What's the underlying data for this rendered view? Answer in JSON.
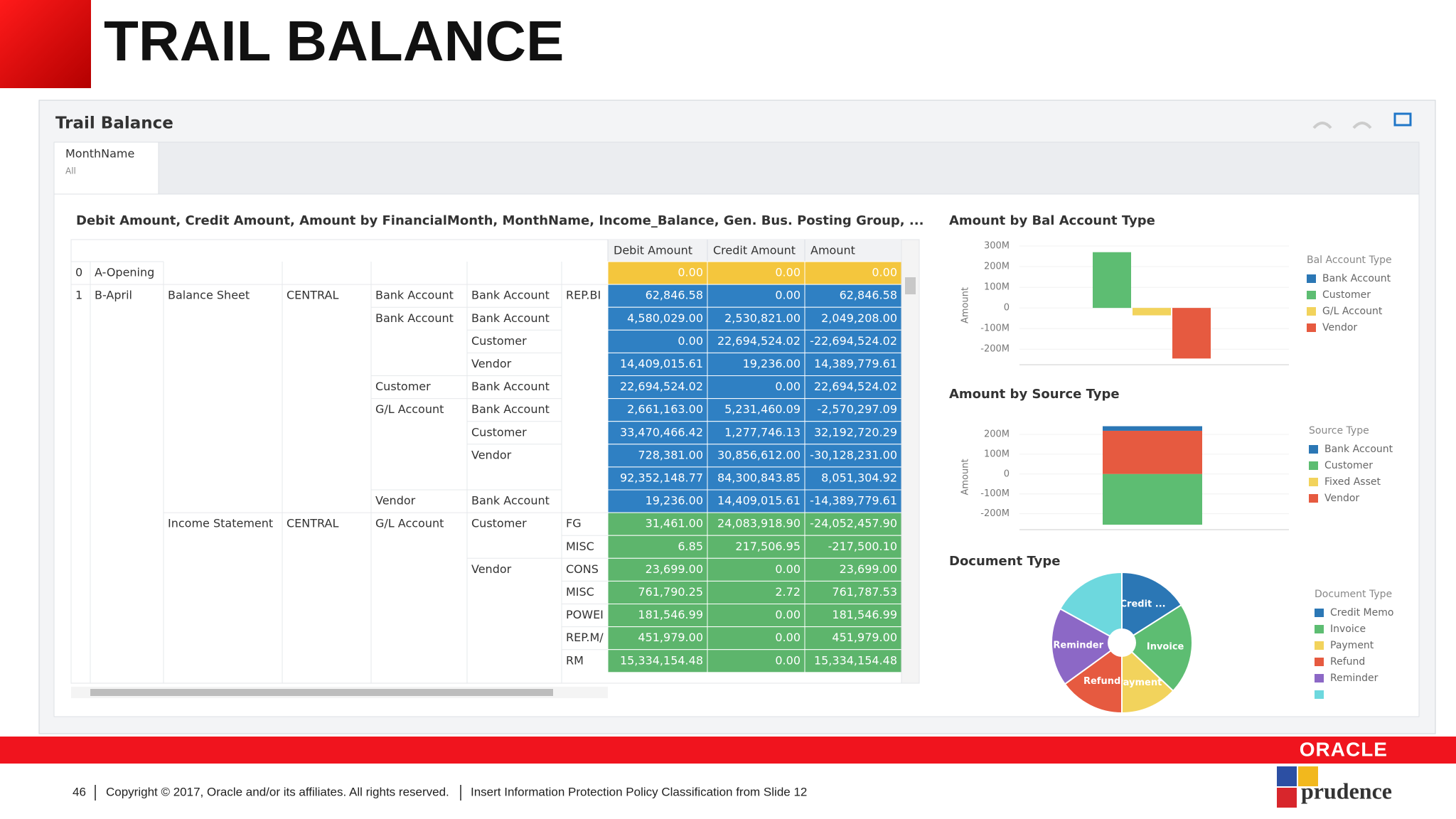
{
  "slide": {
    "title": "TRAIL BALANCE",
    "logo": "ORACLE",
    "brand": "prudence",
    "footer": {
      "page": "46",
      "copyright": "Copyright © 2017, Oracle and/or its affiliates. All rights reserved.",
      "classification": "Insert Information Protection Policy Classification from Slide 12"
    }
  },
  "dashboard": {
    "title": "Trail Balance",
    "filter": {
      "label": "MonthName",
      "value": "All"
    }
  },
  "table": {
    "title": "Debit Amount, Credit Amount, Amount by FinancialMonth, MonthName, Income_Balance, Gen. Bus. Posting Group, ...",
    "columns": [
      "Debit Amount",
      "Credit Amount",
      "Amount"
    ],
    "rows": [
      {
        "idx": "0",
        "month": "A-Opening",
        "color": "#f4c63d",
        "values": [
          "0.00",
          "0.00",
          "0.00"
        ]
      },
      {
        "idx": "1",
        "month": "B-April",
        "statement": "Balance Sheet",
        "group": "CENTRAL",
        "bal_type": "Bank Account",
        "source": "Bank Account",
        "code": "REP.BI",
        "color": "#2f80c3",
        "values": [
          "62,846.58",
          "0.00",
          "62,846.58"
        ]
      },
      {
        "bal_type": "Bank Account",
        "source": "Bank Account",
        "color": "#2f80c3",
        "values": [
          "4,580,029.00",
          "2,530,821.00",
          "2,049,208.00"
        ]
      },
      {
        "source": "Customer",
        "color": "#2f80c3",
        "values": [
          "0.00",
          "22,694,524.02",
          "-22,694,524.02"
        ]
      },
      {
        "source": "Vendor",
        "color": "#2f80c3",
        "values": [
          "14,409,015.61",
          "19,236.00",
          "14,389,779.61"
        ]
      },
      {
        "bal_type": "Customer",
        "source": "Bank Account",
        "color": "#2f80c3",
        "values": [
          "22,694,524.02",
          "0.00",
          "22,694,524.02"
        ]
      },
      {
        "bal_type": "G/L Account",
        "source": "Bank Account",
        "color": "#2f80c3",
        "values": [
          "2,661,163.00",
          "5,231,460.09",
          "-2,570,297.09"
        ]
      },
      {
        "source": "Customer",
        "color": "#2f80c3",
        "values": [
          "33,470,466.42",
          "1,277,746.13",
          "32,192,720.29"
        ]
      },
      {
        "source": "Vendor",
        "color": "#2f80c3",
        "values": [
          "728,381.00",
          "30,856,612.00",
          "-30,128,231.00"
        ]
      },
      {
        "color": "#2f80c3",
        "values": [
          "92,352,148.77",
          "84,300,843.85",
          "8,051,304.92"
        ]
      },
      {
        "bal_type": "Vendor",
        "source": "Bank Account",
        "color": "#2f80c3",
        "values": [
          "19,236.00",
          "14,409,015.61",
          "-14,389,779.61"
        ]
      },
      {
        "statement": "Income Statement",
        "group": "CENTRAL",
        "bal_type": "G/L Account",
        "source": "Customer",
        "code": "FG",
        "color": "#5db56c",
        "values": [
          "31,461.00",
          "24,083,918.90",
          "-24,052,457.90"
        ]
      },
      {
        "code": "MISC",
        "color": "#5db56c",
        "values": [
          "6.85",
          "217,506.95",
          "-217,500.10"
        ]
      },
      {
        "source": "Vendor",
        "code": "CONS",
        "color": "#5db56c",
        "values": [
          "23,699.00",
          "0.00",
          "23,699.00"
        ]
      },
      {
        "code": "MISC",
        "color": "#5db56c",
        "values": [
          "761,790.25",
          "2.72",
          "761,787.53"
        ]
      },
      {
        "code": "POWEI",
        "color": "#5db56c",
        "values": [
          "181,546.99",
          "0.00",
          "181,546.99"
        ]
      },
      {
        "code": "REP.M/",
        "color": "#5db56c",
        "values": [
          "451,979.00",
          "0.00",
          "451,979.00"
        ]
      },
      {
        "code": "RM",
        "color": "#5db56c",
        "values": [
          "15,334,154.48",
          "0.00",
          "15,334,154.48"
        ]
      }
    ]
  },
  "charts": [
    {
      "type": "bar",
      "title": "Amount by Bal Account Type",
      "ylabel": "Amount",
      "legend_title": "Bal Account Type",
      "ylim": [
        -275000000,
        300000000
      ],
      "yticks": [
        {
          "value": 300000000,
          "label": "300M"
        },
        {
          "value": 200000000,
          "label": "200M"
        },
        {
          "value": 100000000,
          "label": "100M"
        },
        0,
        {
          "value": -100000000,
          "label": "-100M"
        },
        {
          "value": -200000000,
          "label": "-200M"
        }
      ],
      "grid": true,
      "stacked": false,
      "series": [
        {
          "name": "Bank Account",
          "color": "#2b77b5",
          "values": [
            0
          ]
        },
        {
          "name": "Customer",
          "color": "#5dbd72",
          "values": [
            270000000
          ]
        },
        {
          "name": "G/L Account",
          "color": "#f2d35c",
          "values": [
            -36000000
          ]
        },
        {
          "name": "Vendor",
          "color": "#e65a40",
          "values": [
            -245000000
          ]
        }
      ]
    },
    {
      "type": "bar",
      "title": "Amount by Source Type",
      "ylabel": "Amount",
      "legend_title": "Source Type",
      "ylim": [
        -280000000,
        250000000
      ],
      "yticks": [
        {
          "value": 200000000,
          "label": "200M"
        },
        {
          "value": 100000000,
          "label": "100M"
        },
        0,
        {
          "value": -100000000,
          "label": "-100M"
        },
        {
          "value": -200000000,
          "label": "-200M"
        }
      ],
      "grid": true,
      "stacked": true,
      "series": [
        {
          "name": "Bank Account",
          "color": "#2b77b5",
          "values": [
            23000000
          ]
        },
        {
          "name": "Customer",
          "color": "#5dbd72",
          "values": [
            -255000000
          ]
        },
        {
          "name": "Fixed Asset",
          "color": "#f2d35c",
          "values": [
            0
          ]
        },
        {
          "name": "Vendor",
          "color": "#e65a40",
          "values": [
            218000000
          ]
        }
      ]
    },
    {
      "type": "pie",
      "title": "Document Type",
      "legend_title": "Document Type",
      "categories": [
        "Credit Memo",
        "Invoice",
        "Payment",
        "Refund",
        "Reminder",
        null
      ],
      "slice_labels": [
        "Credit ...",
        "Invoice",
        "Payment",
        "Refund",
        "Reminder",
        null
      ],
      "values": [
        16,
        21,
        13,
        15,
        18,
        17
      ],
      "colors": [
        "#2b77b5",
        "#5dbd72",
        "#f2d35c",
        "#e65a40",
        "#8c68c6",
        "#6dd8de"
      ]
    }
  ]
}
